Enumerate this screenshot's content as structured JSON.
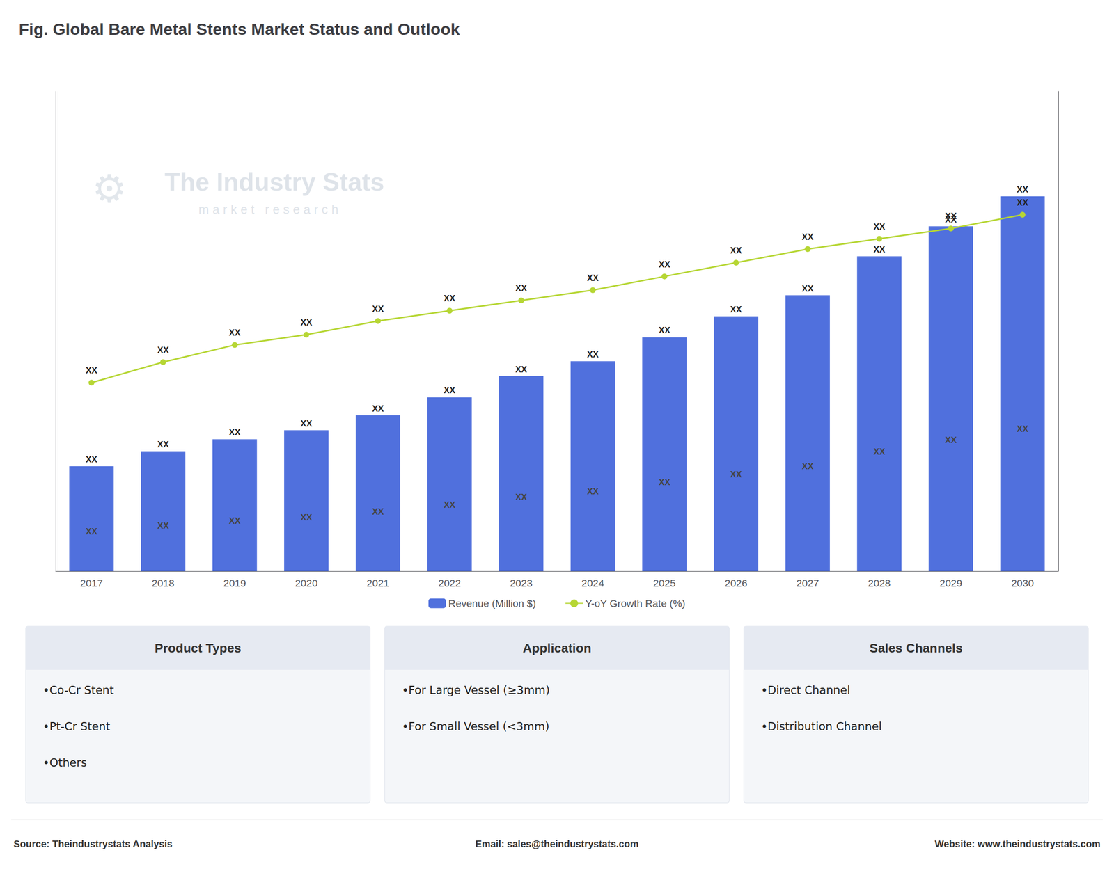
{
  "chart_data": {
    "type": "bar",
    "title": "Fig. Global Bare Metal Stents Market Status and Outlook",
    "categories": [
      "2017",
      "2018",
      "2019",
      "2020",
      "2021",
      "2022",
      "2023",
      "2024",
      "2025",
      "2026",
      "2027",
      "2028",
      "2029",
      "2030"
    ],
    "series": [
      {
        "name": "Revenue (Million $)",
        "type": "bar",
        "values": [
          3.5,
          4.0,
          4.4,
          4.7,
          5.2,
          5.8,
          6.5,
          7.0,
          7.8,
          8.5,
          9.2,
          10.5,
          11.5,
          12.5
        ],
        "value_labels": [
          "XX",
          "XX",
          "XX",
          "XX",
          "XX",
          "XX",
          "XX",
          "XX",
          "XX",
          "XX",
          "XX",
          "XX",
          "XX",
          "XX"
        ]
      },
      {
        "name": "Y-oY Growth Rate (%)",
        "type": "line",
        "axis": "y2",
        "marker": "circle",
        "values": [
          5.5,
          6.1,
          6.6,
          6.9,
          7.3,
          7.6,
          7.9,
          8.2,
          8.6,
          9.0,
          9.4,
          9.7,
          10.0,
          10.4
        ],
        "value_labels": [
          "XX",
          "XX",
          "XX",
          "XX",
          "XX",
          "XX",
          "XX",
          "XX",
          "XX",
          "XX",
          "XX",
          "XX",
          "XX",
          "XX"
        ]
      }
    ],
    "ylim": [
      0,
      16.0
    ],
    "y2lim": [
      0,
      14.0
    ],
    "grid": false,
    "tick_labels": "x",
    "legend": "bottom",
    "annotations": [
      "The Industry Stats",
      "m a r k e t   r e s e a r c h",
      "⚙"
    ],
    "panels": [
      {
        "header": "Product Types",
        "items": [
          "•Co-Cr Stent",
          "•Pt-Cr Stent",
          "•Others"
        ]
      },
      {
        "header": "Application",
        "items": [
          "•For Large Vessel (≥3mm)",
          "•For Small Vessel (<3mm)"
        ]
      },
      {
        "header": "Sales Channels",
        "items": [
          "•Direct Channel",
          "•Distribution Channel"
        ]
      }
    ],
    "footer": [
      "Source: Theindustrystats Analysis",
      "Email: sales@theindustrystats.com",
      "Website: www.theindustrystats.com"
    ]
  }
}
